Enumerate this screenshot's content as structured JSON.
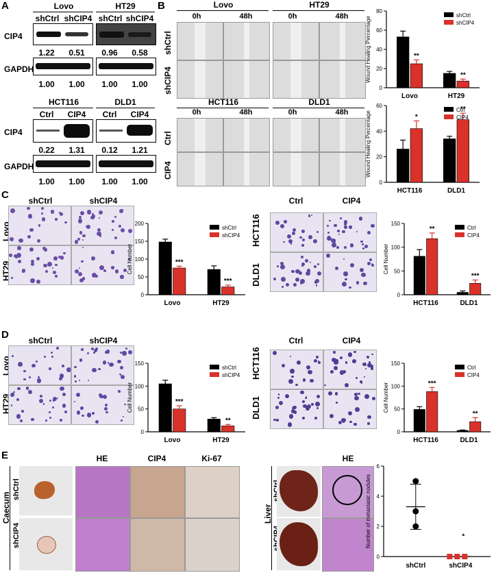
{
  "panels": [
    "A",
    "B",
    "C",
    "D",
    "E"
  ],
  "A": {
    "top_left": {
      "title": "Lovo",
      "cols": [
        "shCtrl",
        "shCIP4"
      ],
      "cip4": [
        "1.22",
        "0.51"
      ],
      "gapdh": [
        "1.00",
        "1.00"
      ]
    },
    "top_right": {
      "title": "HT29",
      "cols": [
        "shCtrl",
        "shCIP4"
      ],
      "cip4": [
        "0.96",
        "0.58"
      ],
      "gapdh": [
        "1.00",
        "1.00"
      ]
    },
    "bot_left": {
      "title": "HCT116",
      "cols": [
        "Ctrl",
        "CIP4"
      ],
      "cip4": [
        "0.22",
        "1.31"
      ],
      "gapdh": [
        "1.00",
        "1.00"
      ]
    },
    "bot_right": {
      "title": "DLD1",
      "cols": [
        "Ctrl",
        "CIP4"
      ],
      "cip4": [
        "0.12",
        "1.21"
      ],
      "gapdh": [
        "1.00",
        "1.00"
      ]
    },
    "rows": [
      "CIP4",
      "GAPDH"
    ]
  },
  "B": {
    "top": {
      "lines": [
        "Lovo",
        "HT29"
      ],
      "times": [
        "0h",
        "48h"
      ],
      "rows": [
        "shCtrl",
        "shCIP4"
      ]
    },
    "bottom": {
      "lines": [
        "HCT116",
        "DLD1"
      ],
      "times": [
        "0h",
        "48h"
      ],
      "rows": [
        "Ctrl",
        "CIP4"
      ]
    }
  },
  "C": {
    "left_cols": [
      "shCtrl",
      "shCIP4"
    ],
    "left_rows": [
      "Lovo",
      "HT29"
    ],
    "right_cols": [
      "Ctrl",
      "CIP4"
    ],
    "right_rows": [
      "HCT116",
      "DLD1"
    ]
  },
  "D": {
    "left_cols": [
      "shCtrl",
      "shCIP4"
    ],
    "left_rows": [
      "Lovo",
      "HT29"
    ],
    "right_cols": [
      "Ctrl",
      "CIP4"
    ],
    "right_rows": [
      "HCT116",
      "DLD1"
    ]
  },
  "E": {
    "left_cols": [
      "HE",
      "CIP4",
      "Ki-67"
    ],
    "left_group": "Caecum",
    "left_rows": [
      "shCtrl",
      "shCIP4"
    ],
    "right_col": "HE",
    "right_group": "Liver",
    "right_rows": [
      "shCtrl",
      "shCIP4"
    ]
  },
  "colors": {
    "ctrl": "#000000",
    "treat": "#d8322a"
  },
  "chart_data": [
    {
      "id": "B-top",
      "type": "bar",
      "categories": [
        "Lovo",
        "HT29"
      ],
      "series": [
        {
          "name": "shCtrl",
          "values": [
            53,
            15
          ]
        },
        {
          "name": "shCIP4",
          "values": [
            25,
            7
          ]
        }
      ],
      "errors": [
        [
          6,
          2
        ],
        [
          4,
          2
        ]
      ],
      "ylabel": "Wound Healing Percentage",
      "ylim": [
        0,
        80
      ],
      "yticks": [
        "0",
        "20",
        "40",
        "60",
        "80"
      ],
      "sig": [
        "**",
        "**"
      ],
      "legend": "top-right"
    },
    {
      "id": "B-bottom",
      "type": "bar",
      "categories": [
        "HCT116",
        "DLD1"
      ],
      "series": [
        {
          "name": "Ctrl",
          "values": [
            26,
            34
          ]
        },
        {
          "name": "CIP4",
          "values": [
            42,
            49
          ]
        }
      ],
      "errors": [
        [
          7,
          2
        ],
        [
          6,
          5
        ]
      ],
      "ylabel": "Wound Healing Percentage",
      "ylim": [
        0,
        60
      ],
      "yticks": [
        "0",
        "20",
        "40",
        "60"
      ],
      "sig": [
        "*",
        "**"
      ],
      "legend": "top-right"
    },
    {
      "id": "C-left",
      "type": "bar",
      "categories": [
        "Lovo",
        "HT29"
      ],
      "series": [
        {
          "name": "shCtrl",
          "values": [
            148,
            71
          ]
        },
        {
          "name": "shCIP4",
          "values": [
            75,
            22
          ]
        }
      ],
      "errors": [
        [
          8,
          10
        ],
        [
          5,
          5
        ]
      ],
      "ylabel": "Cell Number",
      "ylim": [
        0,
        200
      ],
      "yticks": [
        "0",
        "50",
        "100",
        "150",
        "200"
      ],
      "sig": [
        "***",
        "***"
      ],
      "legend": "top-right"
    },
    {
      "id": "C-right",
      "type": "bar",
      "categories": [
        "HCT116",
        "DLD1"
      ],
      "series": [
        {
          "name": "Ctrl",
          "values": [
            81,
            5
          ]
        },
        {
          "name": "CIP4",
          "values": [
            118,
            24
          ]
        }
      ],
      "errors": [
        [
          14,
          3
        ],
        [
          12,
          7
        ]
      ],
      "ylabel": "Cell Number",
      "ylim": [
        0,
        150
      ],
      "yticks": [
        "0",
        "50",
        "100",
        "150"
      ],
      "sig": [
        "**",
        "***"
      ],
      "legend": "top-right"
    },
    {
      "id": "D-left",
      "type": "bar",
      "categories": [
        "Lovo",
        "HT29"
      ],
      "series": [
        {
          "name": "shCtrl",
          "values": [
            105,
            28
          ]
        },
        {
          "name": "shCIP4",
          "values": [
            50,
            13
          ]
        }
      ],
      "errors": [
        [
          8,
          3
        ],
        [
          7,
          3
        ]
      ],
      "ylabel": "Cell Number",
      "ylim": [
        0,
        150
      ],
      "yticks": [
        "0",
        "50",
        "100",
        "150"
      ],
      "sig": [
        "***",
        "**"
      ],
      "legend": "top-right"
    },
    {
      "id": "D-right",
      "type": "bar",
      "categories": [
        "HCT116",
        "DLD1"
      ],
      "series": [
        {
          "name": "Ctrl",
          "values": [
            49,
            3
          ]
        },
        {
          "name": "CIP4",
          "values": [
            88,
            22
          ]
        }
      ],
      "errors": [
        [
          6,
          1
        ],
        [
          9,
          9
        ]
      ],
      "ylabel": "Cell Number",
      "ylim": [
        0,
        150
      ],
      "yticks": [
        "0",
        "50",
        "100",
        "150"
      ],
      "sig": [
        "***",
        "**"
      ],
      "legend": "top-right"
    },
    {
      "id": "E",
      "type": "scatter",
      "categories": [
        "shCtrl",
        "shCIP4"
      ],
      "points": [
        [
          5,
          3,
          2
        ],
        [
          0,
          0,
          0
        ]
      ],
      "mean": [
        3.3,
        0
      ],
      "sd": [
        1.5,
        0
      ],
      "ylabel": "Number of metastasic nodules",
      "ylim": [
        0,
        6
      ],
      "yticks": [
        "0",
        "2",
        "4",
        "6"
      ],
      "sig": [
        "",
        "*"
      ]
    }
  ]
}
